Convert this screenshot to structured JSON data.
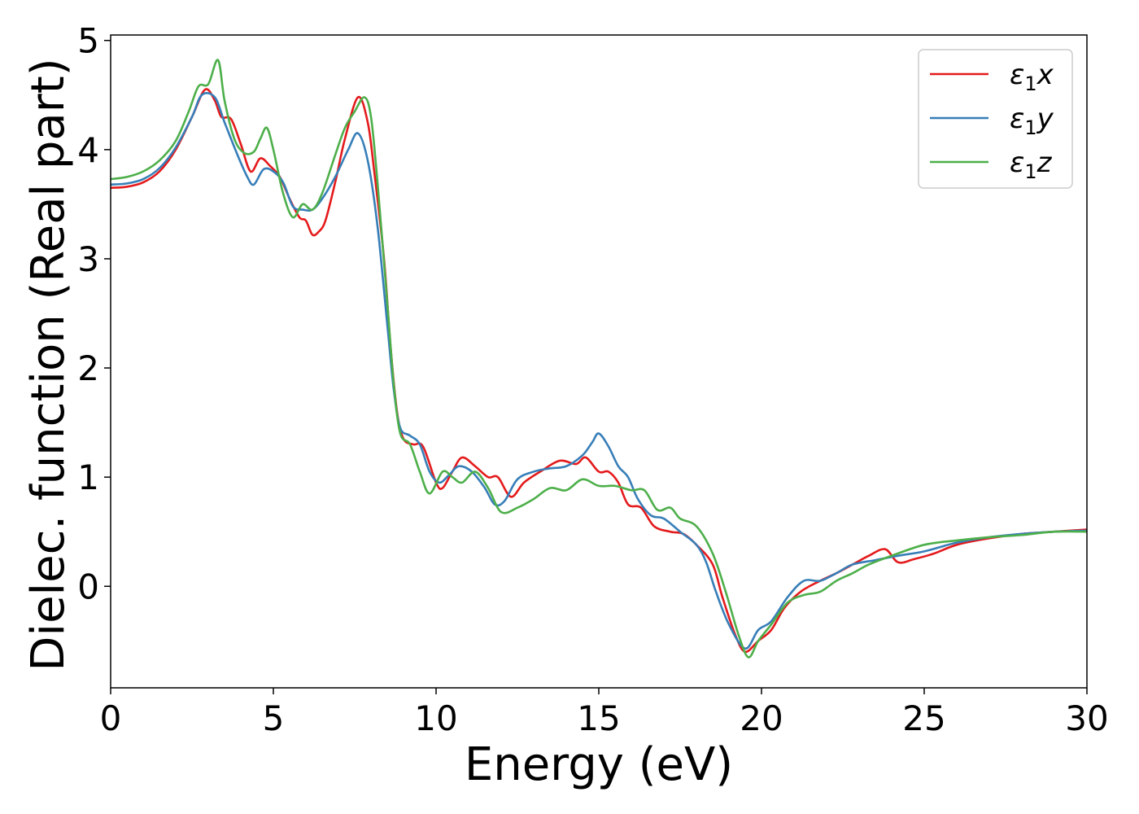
{
  "chart_data": {
    "type": "line",
    "title": "",
    "xlabel": "Energy (eV)",
    "ylabel": "Dielec. function (Real part)",
    "xlim": [
      0,
      30
    ],
    "ylim": [
      -0.93,
      5.05
    ],
    "xticks": [
      0,
      5,
      10,
      15,
      20,
      25,
      30
    ],
    "yticks": [
      0,
      1,
      2,
      3,
      4,
      5
    ],
    "grid": false,
    "legend_position": "top-right",
    "series": [
      {
        "name": "ε₁x",
        "label_base": "ε",
        "label_sub": "1",
        "label_suffix": "x",
        "color": "#e41a1c",
        "points": [
          [
            0,
            3.65
          ],
          [
            0.5,
            3.66
          ],
          [
            1,
            3.7
          ],
          [
            1.5,
            3.8
          ],
          [
            2,
            4.0
          ],
          [
            2.5,
            4.3
          ],
          [
            2.9,
            4.55
          ],
          [
            3.2,
            4.45
          ],
          [
            3.4,
            4.3
          ],
          [
            3.7,
            4.28
          ],
          [
            4.0,
            4.05
          ],
          [
            4.3,
            3.8
          ],
          [
            4.6,
            3.92
          ],
          [
            4.9,
            3.85
          ],
          [
            5.2,
            3.75
          ],
          [
            5.5,
            3.55
          ],
          [
            5.8,
            3.38
          ],
          [
            6.0,
            3.35
          ],
          [
            6.2,
            3.22
          ],
          [
            6.4,
            3.25
          ],
          [
            6.6,
            3.35
          ],
          [
            6.9,
            3.7
          ],
          [
            7.2,
            4.1
          ],
          [
            7.6,
            4.48
          ],
          [
            7.9,
            4.25
          ],
          [
            8.1,
            3.8
          ],
          [
            8.4,
            3.0
          ],
          [
            8.6,
            2.2
          ],
          [
            8.8,
            1.6
          ],
          [
            9.0,
            1.35
          ],
          [
            9.3,
            1.3
          ],
          [
            9.6,
            1.28
          ],
          [
            10.0,
            0.95
          ],
          [
            10.2,
            0.9
          ],
          [
            10.5,
            1.05
          ],
          [
            10.8,
            1.18
          ],
          [
            11.2,
            1.1
          ],
          [
            11.6,
            1.0
          ],
          [
            11.9,
            1.0
          ],
          [
            12.3,
            0.82
          ],
          [
            12.7,
            0.95
          ],
          [
            13.2,
            1.05
          ],
          [
            13.8,
            1.15
          ],
          [
            14.3,
            1.12
          ],
          [
            14.6,
            1.18
          ],
          [
            15.0,
            1.05
          ],
          [
            15.3,
            1.05
          ],
          [
            15.6,
            0.95
          ],
          [
            15.9,
            0.75
          ],
          [
            16.3,
            0.72
          ],
          [
            16.7,
            0.55
          ],
          [
            17.2,
            0.5
          ],
          [
            17.6,
            0.48
          ],
          [
            18.0,
            0.38
          ],
          [
            18.5,
            0.2
          ],
          [
            18.8,
            -0.1
          ],
          [
            19.2,
            -0.45
          ],
          [
            19.5,
            -0.6
          ],
          [
            19.9,
            -0.5
          ],
          [
            20.3,
            -0.4
          ],
          [
            20.7,
            -0.2
          ],
          [
            21.2,
            -0.05
          ],
          [
            21.8,
            0.05
          ],
          [
            22.3,
            0.12
          ],
          [
            22.8,
            0.2
          ],
          [
            23.3,
            0.28
          ],
          [
            23.8,
            0.34
          ],
          [
            24.2,
            0.22
          ],
          [
            24.7,
            0.25
          ],
          [
            25.3,
            0.3
          ],
          [
            26,
            0.38
          ],
          [
            27,
            0.44
          ],
          [
            28,
            0.48
          ],
          [
            29,
            0.5
          ],
          [
            30,
            0.52
          ]
        ]
      },
      {
        "name": "ε₁y",
        "label_base": "ε",
        "label_sub": "1",
        "label_suffix": "y",
        "color": "#377eb8",
        "points": [
          [
            0,
            3.68
          ],
          [
            0.5,
            3.69
          ],
          [
            1,
            3.73
          ],
          [
            1.5,
            3.83
          ],
          [
            2,
            4.02
          ],
          [
            2.5,
            4.3
          ],
          [
            2.8,
            4.5
          ],
          [
            3.2,
            4.48
          ],
          [
            3.5,
            4.25
          ],
          [
            3.9,
            3.95
          ],
          [
            4.2,
            3.75
          ],
          [
            4.4,
            3.68
          ],
          [
            4.7,
            3.82
          ],
          [
            5.0,
            3.8
          ],
          [
            5.3,
            3.7
          ],
          [
            5.6,
            3.48
          ],
          [
            5.9,
            3.45
          ],
          [
            6.2,
            3.45
          ],
          [
            6.5,
            3.55
          ],
          [
            6.9,
            3.75
          ],
          [
            7.3,
            4.0
          ],
          [
            7.6,
            4.15
          ],
          [
            7.9,
            3.9
          ],
          [
            8.2,
            3.3
          ],
          [
            8.5,
            2.4
          ],
          [
            8.7,
            1.8
          ],
          [
            8.9,
            1.45
          ],
          [
            9.2,
            1.38
          ],
          [
            9.5,
            1.3
          ],
          [
            9.8,
            1.05
          ],
          [
            10.1,
            0.95
          ],
          [
            10.4,
            1.02
          ],
          [
            10.7,
            1.1
          ],
          [
            11.1,
            1.05
          ],
          [
            11.5,
            0.9
          ],
          [
            11.8,
            0.75
          ],
          [
            12.1,
            0.78
          ],
          [
            12.5,
            0.98
          ],
          [
            13.0,
            1.05
          ],
          [
            13.5,
            1.08
          ],
          [
            14.0,
            1.1
          ],
          [
            14.5,
            1.2
          ],
          [
            14.8,
            1.32
          ],
          [
            15.0,
            1.4
          ],
          [
            15.3,
            1.28
          ],
          [
            15.6,
            1.1
          ],
          [
            15.9,
            1.0
          ],
          [
            16.2,
            0.8
          ],
          [
            16.6,
            0.65
          ],
          [
            17.0,
            0.62
          ],
          [
            17.5,
            0.5
          ],
          [
            18.0,
            0.38
          ],
          [
            18.3,
            0.22
          ],
          [
            18.6,
            -0.05
          ],
          [
            19.0,
            -0.35
          ],
          [
            19.5,
            -0.57
          ],
          [
            19.9,
            -0.4
          ],
          [
            20.3,
            -0.32
          ],
          [
            20.8,
            -0.1
          ],
          [
            21.3,
            0.05
          ],
          [
            21.8,
            0.05
          ],
          [
            22.3,
            0.12
          ],
          [
            22.8,
            0.2
          ],
          [
            23.5,
            0.24
          ],
          [
            24.2,
            0.28
          ],
          [
            25,
            0.32
          ],
          [
            26,
            0.4
          ],
          [
            27,
            0.45
          ],
          [
            28,
            0.48
          ],
          [
            29,
            0.5
          ],
          [
            30,
            0.51
          ]
        ]
      },
      {
        "name": "ε₁z",
        "label_base": "ε",
        "label_sub": "1",
        "label_suffix": "z",
        "color": "#4daf4a",
        "points": [
          [
            0,
            3.73
          ],
          [
            0.5,
            3.75
          ],
          [
            1,
            3.8
          ],
          [
            1.5,
            3.9
          ],
          [
            2,
            4.08
          ],
          [
            2.4,
            4.35
          ],
          [
            2.7,
            4.58
          ],
          [
            3.0,
            4.6
          ],
          [
            3.3,
            4.82
          ],
          [
            3.5,
            4.45
          ],
          [
            3.8,
            4.1
          ],
          [
            4.1,
            3.97
          ],
          [
            4.4,
            3.98
          ],
          [
            4.6,
            4.1
          ],
          [
            4.8,
            4.2
          ],
          [
            5.0,
            4.0
          ],
          [
            5.3,
            3.6
          ],
          [
            5.6,
            3.38
          ],
          [
            5.9,
            3.5
          ],
          [
            6.2,
            3.45
          ],
          [
            6.5,
            3.6
          ],
          [
            6.9,
            3.95
          ],
          [
            7.2,
            4.2
          ],
          [
            7.5,
            4.35
          ],
          [
            7.8,
            4.48
          ],
          [
            8.0,
            4.3
          ],
          [
            8.2,
            3.7
          ],
          [
            8.5,
            2.6
          ],
          [
            8.7,
            1.85
          ],
          [
            8.9,
            1.4
          ],
          [
            9.2,
            1.3
          ],
          [
            9.5,
            1.05
          ],
          [
            9.8,
            0.85
          ],
          [
            10.2,
            1.05
          ],
          [
            10.5,
            1.0
          ],
          [
            10.8,
            0.95
          ],
          [
            11.2,
            1.05
          ],
          [
            11.6,
            0.9
          ],
          [
            12.0,
            0.68
          ],
          [
            12.5,
            0.72
          ],
          [
            13.0,
            0.8
          ],
          [
            13.5,
            0.9
          ],
          [
            14.0,
            0.88
          ],
          [
            14.5,
            0.98
          ],
          [
            15.0,
            0.92
          ],
          [
            15.5,
            0.92
          ],
          [
            16.0,
            0.88
          ],
          [
            16.4,
            0.88
          ],
          [
            16.8,
            0.7
          ],
          [
            17.2,
            0.72
          ],
          [
            17.5,
            0.62
          ],
          [
            18.0,
            0.55
          ],
          [
            18.5,
            0.3
          ],
          [
            18.9,
            -0.05
          ],
          [
            19.3,
            -0.45
          ],
          [
            19.6,
            -0.65
          ],
          [
            19.9,
            -0.5
          ],
          [
            20.3,
            -0.35
          ],
          [
            20.8,
            -0.15
          ],
          [
            21.3,
            -0.08
          ],
          [
            21.8,
            -0.05
          ],
          [
            22.3,
            0.05
          ],
          [
            22.8,
            0.12
          ],
          [
            23.3,
            0.2
          ],
          [
            24,
            0.28
          ],
          [
            25,
            0.38
          ],
          [
            26,
            0.42
          ],
          [
            27,
            0.45
          ],
          [
            28,
            0.47
          ],
          [
            29,
            0.5
          ],
          [
            30,
            0.5
          ]
        ]
      }
    ]
  }
}
